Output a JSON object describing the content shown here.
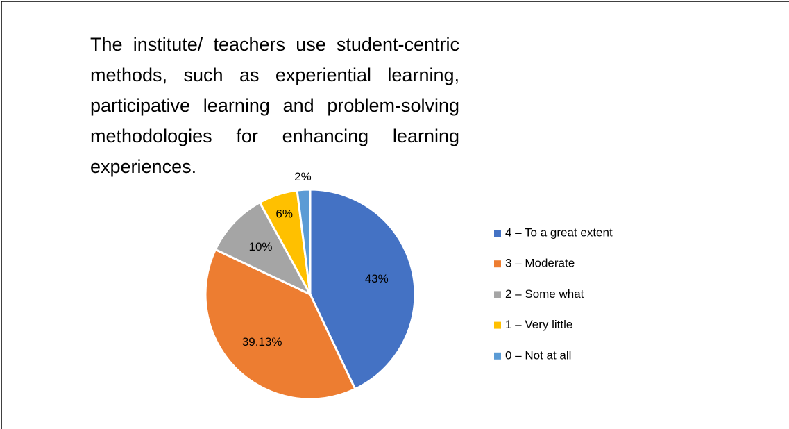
{
  "chart_data": {
    "type": "pie",
    "title": "The institute/ teachers use student-centric methods, such as experiential learning, participative learning and problem-solving methodologies for enhancing learning experiences.",
    "categories": [
      "4 – To a great extent",
      "3 – Moderate",
      "2 – Some what",
      "1 – Very little",
      "0 – Not at all"
    ],
    "values": [
      43,
      39.13,
      10,
      6,
      2
    ],
    "value_labels": [
      "43%",
      "39.13%",
      "10%",
      "6%",
      "2%"
    ],
    "colors": [
      "#4472c4",
      "#ed7d31",
      "#a5a5a5",
      "#ffc000",
      "#5b9bd5"
    ],
    "legend": "right"
  }
}
